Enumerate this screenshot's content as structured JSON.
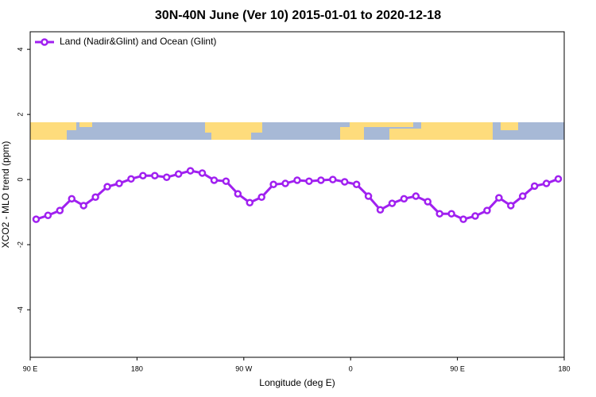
{
  "chart_data": {
    "type": "line",
    "title": "30N-40N June (Ver 10)   2015-01-01 to 2020-12-18",
    "x_label": "Longitude (deg E)",
    "y_label": "XCO2 - MLO trend (ppm)",
    "x": [
      95,
      105,
      115,
      125,
      135,
      145,
      155,
      165,
      175,
      185,
      195,
      205,
      215,
      225,
      235,
      245,
      255,
      265,
      275,
      285,
      295,
      305,
      315,
      325,
      335,
      345,
      355,
      365,
      375,
      385,
      395,
      405,
      415,
      425,
      435,
      445,
      455,
      465,
      475,
      485,
      495,
      505,
      515,
      525,
      535
    ],
    "series": [
      {
        "name": "Land (Nadir&Glint) and Ocean (Glint)",
        "color": "#a020f0",
        "values": [
          -1.22,
          -1.1,
          -0.95,
          -0.59,
          -0.8,
          -0.54,
          -0.22,
          -0.12,
          0.02,
          0.12,
          0.12,
          0.07,
          0.17,
          0.27,
          0.2,
          -0.02,
          -0.05,
          -0.44,
          -0.71,
          -0.54,
          -0.15,
          -0.12,
          -0.02,
          -0.05,
          -0.02,
          0,
          -0.07,
          -0.15,
          -0.51,
          -0.93,
          -0.73,
          -0.59,
          -0.51,
          -0.68,
          -1.05,
          -1.05,
          -1.22,
          -1.12,
          -0.95,
          -0.56,
          -0.8,
          -0.51,
          -0.2,
          -0.12,
          0.02
        ]
      }
    ],
    "xlim": [
      90,
      540
    ],
    "xticks": [
      {
        "value": 90,
        "label": "90 E"
      },
      180,
      {
        "value": 270,
        "label": "90 W"
      },
      {
        "value": 360,
        "label": "0"
      },
      {
        "value": 450,
        "label": "90 E"
      },
      {
        "value": 540,
        "label": "180"
      }
    ],
    "ylim": [
      -5.46,
      4.54
    ],
    "yticks": [
      -4,
      -2,
      0,
      2,
      4
    ],
    "legend": "top-left"
  }
}
